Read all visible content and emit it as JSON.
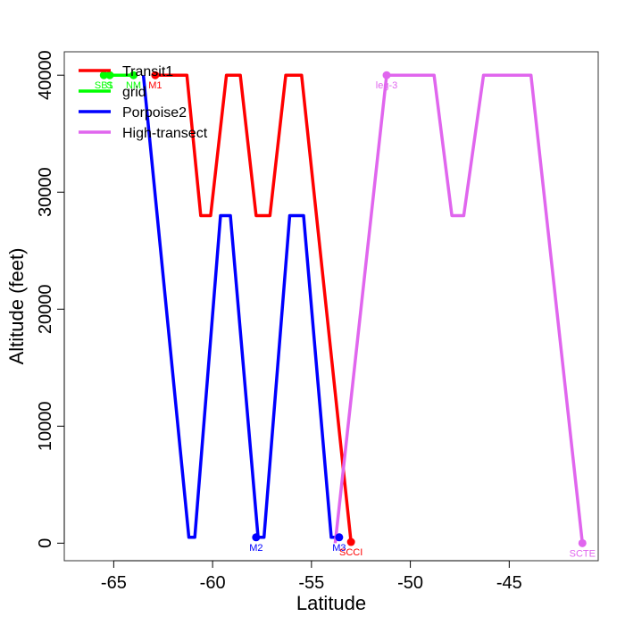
{
  "chart_data": {
    "type": "line",
    "xlabel": "Latitude",
    "ylabel": "Altitude (feet)",
    "xlim": [
      -67.5,
      -40.5
    ],
    "ylim": [
      -1500,
      42000
    ],
    "xticks": [
      -65,
      -60,
      -55,
      -50,
      -45
    ],
    "yticks": [
      0,
      10000,
      20000,
      30000,
      40000
    ],
    "xtick_labels": [
      "-65",
      "-60",
      "-55",
      "-50",
      "-45"
    ],
    "ytick_labels": [
      "0",
      "10000",
      "20000",
      "30000",
      "40000"
    ],
    "legend_position": "top-left",
    "series": [
      {
        "name": "Transit1",
        "color": "#ff0000",
        "x": [
          -62.9,
          -61.3,
          -60.6,
          -60.1,
          -59.3,
          -58.6,
          -57.8,
          -57.1,
          -56.3,
          -55.5,
          -53.0
        ],
        "y": [
          40000,
          40000,
          28000,
          28000,
          40000,
          40000,
          28000,
          28000,
          40000,
          40000,
          100
        ]
      },
      {
        "name": "grid",
        "color": "#00ff00",
        "x": [
          -65.5,
          -63.8
        ],
        "y": [
          40000,
          40000
        ]
      },
      {
        "name": "Porpoise2",
        "color": "#0000ff",
        "x": [
          -63.5,
          -61.2,
          -60.9,
          -59.6,
          -59.1,
          -57.7,
          -57.4,
          -56.1,
          -55.4,
          -54.0,
          -53.6
        ],
        "y": [
          40000,
          500,
          500,
          28000,
          28000,
          500,
          500,
          28000,
          28000,
          500,
          500
        ]
      },
      {
        "name": "High-transect",
        "color": "#e066ee",
        "x": [
          -53.8,
          -51.2,
          -48.8,
          -47.9,
          -47.3,
          -46.3,
          -43.9,
          -41.3
        ],
        "y": [
          0,
          40000,
          40000,
          28000,
          28000,
          40000,
          40000,
          0
        ]
      }
    ],
    "labeled_points": [
      {
        "label": "SB1",
        "x": -65.5,
        "y": 40000,
        "color": "#00ff00"
      },
      {
        "label": "S",
        "x": -65.2,
        "y": 40000,
        "color": "#00ff00"
      },
      {
        "label": "NM",
        "x": -64.0,
        "y": 40000,
        "color": "#00ff00"
      },
      {
        "label": "M1",
        "x": -62.9,
        "y": 40000,
        "color": "#ff0000"
      },
      {
        "label": "M2",
        "x": -57.8,
        "y": 500,
        "color": "#0000ff"
      },
      {
        "label": "M3",
        "x": -53.6,
        "y": 500,
        "color": "#0000ff"
      },
      {
        "label": "SCCI",
        "x": -53.0,
        "y": 100,
        "color": "#ff0000"
      },
      {
        "label": "leg-3",
        "x": -51.2,
        "y": 40000,
        "color": "#e066ee"
      },
      {
        "label": "SCTE",
        "x": -41.3,
        "y": 0,
        "color": "#e066ee"
      }
    ]
  }
}
